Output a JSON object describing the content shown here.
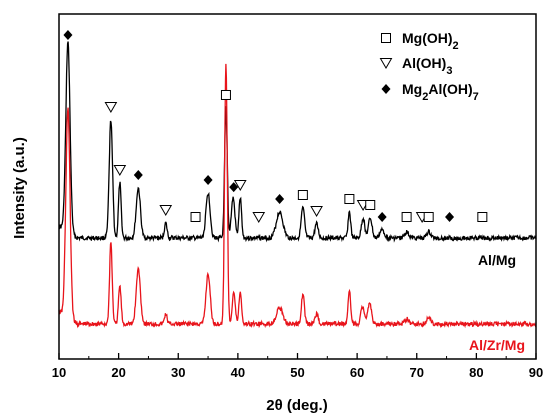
{
  "chart_data": {
    "type": "line",
    "title": "",
    "xlabel": "2θ (deg.)",
    "ylabel": "Intensity (a.u.)",
    "xlim": [
      10,
      90
    ],
    "xticks": [
      10,
      20,
      30,
      40,
      50,
      60,
      70,
      80,
      90
    ],
    "grid": false,
    "legend_position": "top-right",
    "legend": [
      {
        "symbol": "square",
        "label": "Mg(OH)",
        "sub": "2",
        "after": ""
      },
      {
        "symbol": "triangle",
        "label": "Al(OH)",
        "sub": "3",
        "after": ""
      },
      {
        "symbol": "diamond",
        "label": "Mg",
        "sub": "2",
        "after": "Al(OH)",
        "sub2": "7"
      }
    ],
    "series": [
      {
        "name": "Al/Mg",
        "color": "#000000",
        "baseline": 238,
        "noise": 2.2,
        "peaks": [
          [
            11.5,
            190,
            0.35
          ],
          [
            18.7,
            118,
            0.28
          ],
          [
            20.2,
            55,
            0.22
          ],
          [
            23.3,
            50,
            0.35
          ],
          [
            27.9,
            15,
            0.22
          ],
          [
            35.0,
            45,
            0.35
          ],
          [
            38.0,
            130,
            0.22
          ],
          [
            39.2,
            40,
            0.3
          ],
          [
            40.4,
            40,
            0.22
          ],
          [
            47.0,
            26,
            0.55
          ],
          [
            50.9,
            30,
            0.28
          ],
          [
            53.2,
            14,
            0.28
          ],
          [
            58.7,
            26,
            0.22
          ],
          [
            61.0,
            20,
            0.28
          ],
          [
            62.2,
            20,
            0.3
          ],
          [
            64.2,
            8,
            0.4
          ],
          [
            68.3,
            6,
            0.35
          ],
          [
            72.0,
            6,
            0.35
          ]
        ],
        "markers": [
          {
            "x": 11.5,
            "sym": "diamond"
          },
          {
            "x": 18.7,
            "sym": "triangle"
          },
          {
            "x": 20.2,
            "sym": "triangle"
          },
          {
            "x": 23.3,
            "sym": "diamond"
          },
          {
            "x": 27.9,
            "sym": "triangle"
          },
          {
            "x": 32.9,
            "sym": "square"
          },
          {
            "x": 35.0,
            "sym": "diamond"
          },
          {
            "x": 38.0,
            "sym": "square"
          },
          {
            "x": 39.3,
            "sym": "diamond"
          },
          {
            "x": 40.4,
            "sym": "triangle"
          },
          {
            "x": 43.5,
            "sym": "triangle"
          },
          {
            "x": 47.0,
            "sym": "diamond"
          },
          {
            "x": 50.9,
            "sym": "square"
          },
          {
            "x": 53.2,
            "sym": "triangle"
          },
          {
            "x": 58.7,
            "sym": "square"
          },
          {
            "x": 61.0,
            "sym": "triangle"
          },
          {
            "x": 62.2,
            "sym": "square"
          },
          {
            "x": 64.2,
            "sym": "diamond"
          },
          {
            "x": 68.3,
            "sym": "square"
          },
          {
            "x": 70.9,
            "sym": "triangle"
          },
          {
            "x": 72.0,
            "sym": "square"
          },
          {
            "x": 75.5,
            "sym": "diamond"
          },
          {
            "x": 81.0,
            "sym": "square"
          }
        ]
      },
      {
        "name": "Al/Zr/Mg",
        "color": "#e8141b",
        "baseline": 324,
        "noise": 2.2,
        "peaks": [
          [
            11.5,
            210,
            0.35
          ],
          [
            18.7,
            82,
            0.22
          ],
          [
            20.2,
            38,
            0.22
          ],
          [
            23.3,
            55,
            0.35
          ],
          [
            27.9,
            10,
            0.22
          ],
          [
            35.0,
            50,
            0.35
          ],
          [
            38.0,
            262,
            0.22
          ],
          [
            39.3,
            32,
            0.25
          ],
          [
            40.4,
            32,
            0.22
          ],
          [
            47.0,
            16,
            0.55
          ],
          [
            50.9,
            30,
            0.25
          ],
          [
            53.2,
            10,
            0.28
          ],
          [
            58.7,
            34,
            0.22
          ],
          [
            60.9,
            18,
            0.28
          ],
          [
            62.1,
            22,
            0.3
          ],
          [
            68.3,
            5,
            0.35
          ],
          [
            72.0,
            6,
            0.35
          ]
        ]
      }
    ]
  }
}
